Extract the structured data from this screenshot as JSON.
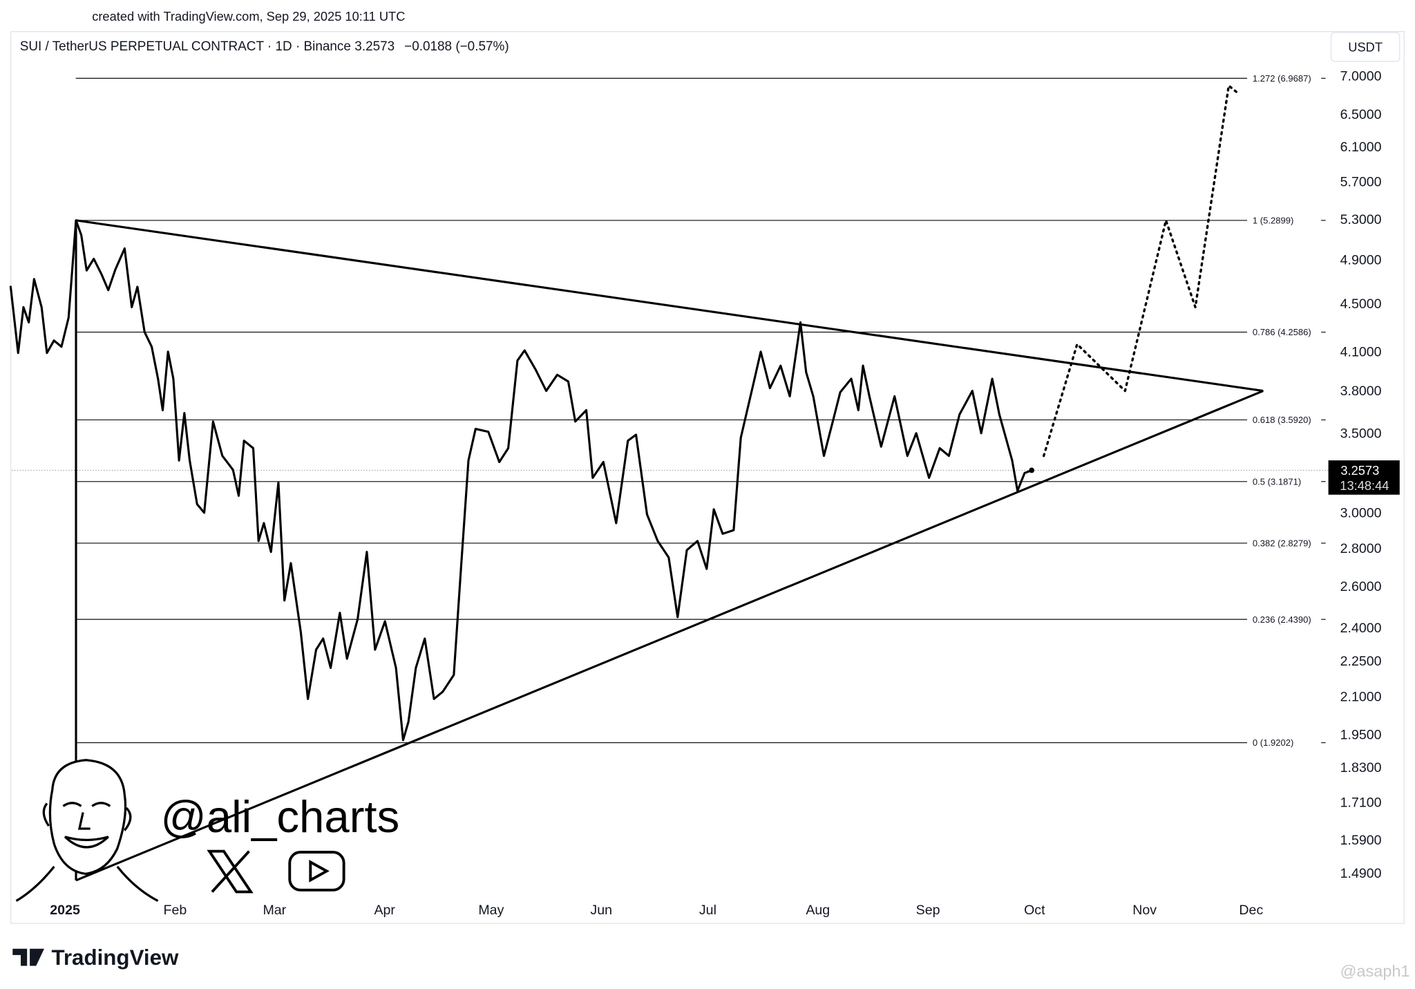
{
  "chart_data": {
    "type": "line",
    "created_note": "created with TradingView.com, Sep 29, 2025 10:11 UTC",
    "title": "SUI / TetherUS PERPETUAL CONTRACT · 1D · Binance",
    "last_price": 3.2573,
    "change_text": "−0.0188 (−0.57%)",
    "currency": "USDT",
    "countdown": "13:48:44",
    "log_scale": true,
    "grid": false,
    "xlim": [
      -15,
      356
    ],
    "ylim": [
      1.42,
      7.63
    ],
    "xticks": [
      {
        "value": 0,
        "label": "2025"
      },
      {
        "value": 31,
        "label": "Feb"
      },
      {
        "value": 59,
        "label": "Mar"
      },
      {
        "value": 90,
        "label": "Apr"
      },
      {
        "value": 120,
        "label": "May"
      },
      {
        "value": 151,
        "label": "Jun"
      },
      {
        "value": 181,
        "label": "Jul"
      },
      {
        "value": 212,
        "label": "Aug"
      },
      {
        "value": 243,
        "label": "Sep"
      },
      {
        "value": 273,
        "label": "Oct"
      },
      {
        "value": 304,
        "label": "Nov"
      },
      {
        "value": 334,
        "label": "Dec"
      }
    ],
    "yticks": [
      {
        "value": 7,
        "label": "7.0000"
      },
      {
        "value": 6.5,
        "label": "6.5000"
      },
      {
        "value": 6.1,
        "label": "6.1000"
      },
      {
        "value": 5.7,
        "label": "5.7000"
      },
      {
        "value": 5.3,
        "label": "5.3000"
      },
      {
        "value": 4.9,
        "label": "4.9000"
      },
      {
        "value": 4.5,
        "label": "4.5000"
      },
      {
        "value": 4.1,
        "label": "4.1000"
      },
      {
        "value": 3.8,
        "label": "3.8000"
      },
      {
        "value": 3.5,
        "label": "3.5000"
      },
      {
        "value": 3,
        "label": "3.0000"
      },
      {
        "value": 2.8,
        "label": "2.8000"
      },
      {
        "value": 2.6,
        "label": "2.6000"
      },
      {
        "value": 2.4,
        "label": "2.4000"
      },
      {
        "value": 2.25,
        "label": "2.2500"
      },
      {
        "value": 2.1,
        "label": "2.1000"
      },
      {
        "value": 1.95,
        "label": "1.9500"
      },
      {
        "value": 1.83,
        "label": "1.8300"
      },
      {
        "value": 1.71,
        "label": "1.7100"
      },
      {
        "value": 1.59,
        "label": "1.5900"
      },
      {
        "value": 1.49,
        "label": "1.4900"
      }
    ],
    "series": [
      {
        "color": "#000000",
        "dash": "solid",
        "x": [
          -15.3,
          -13.2,
          -11.7,
          -10.2,
          -8.7,
          -6.6,
          -5.1,
          -3.1,
          -1.0,
          1.0,
          3.1,
          4.6,
          6.1,
          8.1,
          10.2,
          12.2,
          14.2,
          16.8,
          18.8,
          20.4,
          22.4,
          24.4,
          26.2,
          27.5,
          29.0,
          30.5,
          32.1,
          33.6,
          35.1,
          37.2,
          39.2,
          41.7,
          44.3,
          47.3,
          48.9,
          50.4,
          53.0,
          54.5,
          56.0,
          58.0,
          60.1,
          61.8,
          63.6,
          66.4,
          68.4,
          70.7,
          72.7,
          74.8,
          77.4,
          79.4,
          82.4,
          85.0,
          87.3,
          90.1,
          93.2,
          95.2,
          96.7,
          98.8,
          101.3,
          103.9,
          106.4,
          109.5,
          111.5,
          113.6,
          115.6,
          119.2,
          122.3,
          124.8,
          127.4,
          129.4,
          132.5,
          135.5,
          138.6,
          141.7,
          143.7,
          146.8,
          148.6,
          151.6,
          155.2,
          158.5,
          160.8,
          163.9,
          166.9,
          170.0,
          172.5,
          175.1,
          178.1,
          180.7,
          182.7,
          185.2,
          188.3,
          190.3,
          193.9,
          195.9,
          198.5,
          201.5,
          204.1,
          207.1,
          208.7,
          210.7,
          213.7,
          216.3,
          218.3,
          221.4,
          223.4,
          224.7,
          226.5,
          229.8,
          233.6,
          237.2,
          239.7,
          243.3,
          246.3,
          248.9,
          251.9,
          255.5,
          258.0,
          261.1,
          263.1,
          266.7,
          268.2,
          270.2,
          272.2
        ],
        "values": [
          4.65,
          4.09,
          4.47,
          4.34,
          4.72,
          4.47,
          4.09,
          4.19,
          4.14,
          4.38,
          5.29,
          5.14,
          4.8,
          4.91,
          4.77,
          4.62,
          4.81,
          5.01,
          4.47,
          4.65,
          4.26,
          4.14,
          3.89,
          3.66,
          4.1,
          3.89,
          3.32,
          3.64,
          3.32,
          3.05,
          3.0,
          3.58,
          3.35,
          3.26,
          3.1,
          3.45,
          3.4,
          2.84,
          2.94,
          2.78,
          3.18,
          2.53,
          2.72,
          2.38,
          2.09,
          2.3,
          2.35,
          2.22,
          2.47,
          2.26,
          2.44,
          2.78,
          2.3,
          2.43,
          2.22,
          1.93,
          2.0,
          2.22,
          2.35,
          2.09,
          2.12,
          2.19,
          2.69,
          3.32,
          3.53,
          3.51,
          3.31,
          3.4,
          4.03,
          4.11,
          3.96,
          3.8,
          3.92,
          3.87,
          3.58,
          3.66,
          3.21,
          3.31,
          2.94,
          3.45,
          3.49,
          2.99,
          2.84,
          2.75,
          2.45,
          2.79,
          2.84,
          2.69,
          3.02,
          2.88,
          2.9,
          3.47,
          3.86,
          4.1,
          3.82,
          3.99,
          3.76,
          4.34,
          3.94,
          3.76,
          3.35,
          3.59,
          3.79,
          3.89,
          3.66,
          3.99,
          3.76,
          3.41,
          3.76,
          3.35,
          3.5,
          3.21,
          3.4,
          3.35,
          3.63,
          3.8,
          3.5,
          3.89,
          3.63,
          3.32,
          3.13,
          3.24,
          3.2573
        ]
      },
      {
        "color": "#000000",
        "dash": "dotted",
        "x": [
          275.6,
          285.0,
          298.5,
          310.0,
          318.3,
          327.7,
          330.3
        ],
        "values": [
          3.35,
          4.16,
          3.8,
          5.29,
          4.47,
          6.87,
          6.77
        ]
      }
    ],
    "trendlines": [
      {
        "x": [
          3.1,
          337.4
        ],
        "values": [
          5.29,
          3.8
        ]
      },
      {
        "x": [
          3.1,
          337.4
        ],
        "values": [
          1.47,
          3.8
        ]
      },
      {
        "x": [
          3.1,
          3.1
        ],
        "values": [
          5.29,
          1.47
        ]
      }
    ],
    "fib_levels": [
      {
        "value": 6.9687,
        "label": "1.272 (6.9687)"
      },
      {
        "value": 5.2899,
        "label": "1 (5.2899)"
      },
      {
        "value": 4.2586,
        "label": "0.786 (4.2586)"
      },
      {
        "value": 3.592,
        "label": "0.618 (3.5920)"
      },
      {
        "value": 3.1871,
        "label": "0.5 (3.1871)"
      },
      {
        "value": 2.8279,
        "label": "0.382 (2.8279)"
      },
      {
        "value": 2.439,
        "label": "0.236 (2.4390)"
      },
      {
        "value": 1.9202,
        "label": "0 (1.9202)"
      }
    ]
  },
  "watermark": {
    "handle": "@ali_charts",
    "brand": "TradingView",
    "repost": "@asaph1"
  }
}
